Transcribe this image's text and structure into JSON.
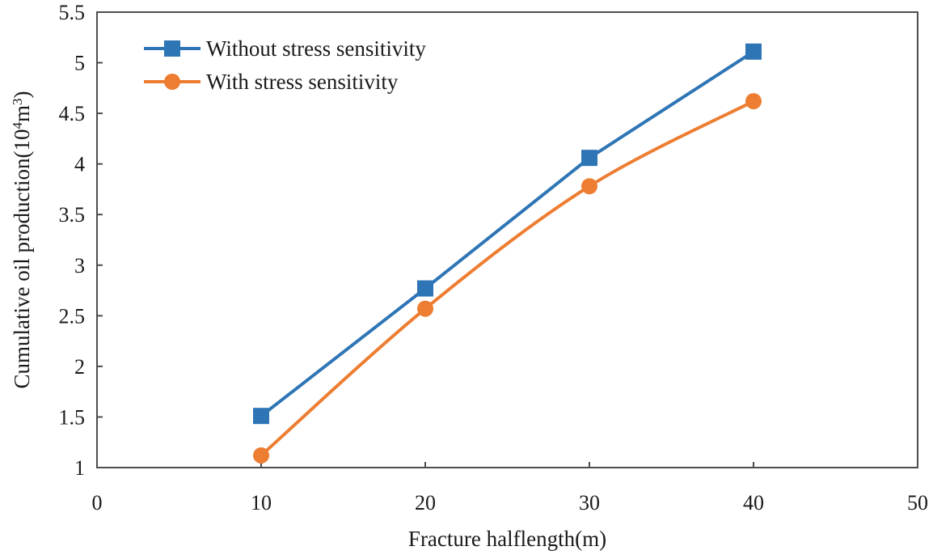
{
  "chart_data": {
    "type": "line",
    "title": "",
    "xlabel": "Fracture halflength(m)",
    "ylabel": {
      "prefix": "Cumulative oil production(10",
      "sup1": "4",
      "mid": "m",
      "sup2": "3",
      "suffix": ")"
    },
    "xlim": [
      0,
      50
    ],
    "ylim": [
      1,
      5.5
    ],
    "x_ticks": [
      0,
      10,
      20,
      30,
      40,
      50
    ],
    "y_ticks": [
      1,
      1.5,
      2,
      2.5,
      3,
      3.5,
      4,
      4.5,
      5,
      5.5
    ],
    "x_tick_labels": [
      "0",
      "10",
      "20",
      "30",
      "40",
      "50"
    ],
    "y_tick_labels": [
      "1",
      "1.5",
      "2",
      "2.5",
      "3",
      "3.5",
      "4",
      "4.5",
      "5",
      "5.5"
    ],
    "grid": false,
    "legend_position": "top-left",
    "x": [
      10,
      20,
      30,
      40
    ],
    "series": [
      {
        "name": "Without stress sensitivity",
        "values": [
          1.51,
          2.77,
          4.06,
          5.11
        ],
        "color": "#2E75B6",
        "marker": "square",
        "smooth": false
      },
      {
        "name": "With stress sensitivity",
        "values": [
          1.12,
          2.57,
          3.78,
          4.62
        ],
        "color": "#ED7D31",
        "marker": "circle",
        "smooth": true
      }
    ]
  }
}
